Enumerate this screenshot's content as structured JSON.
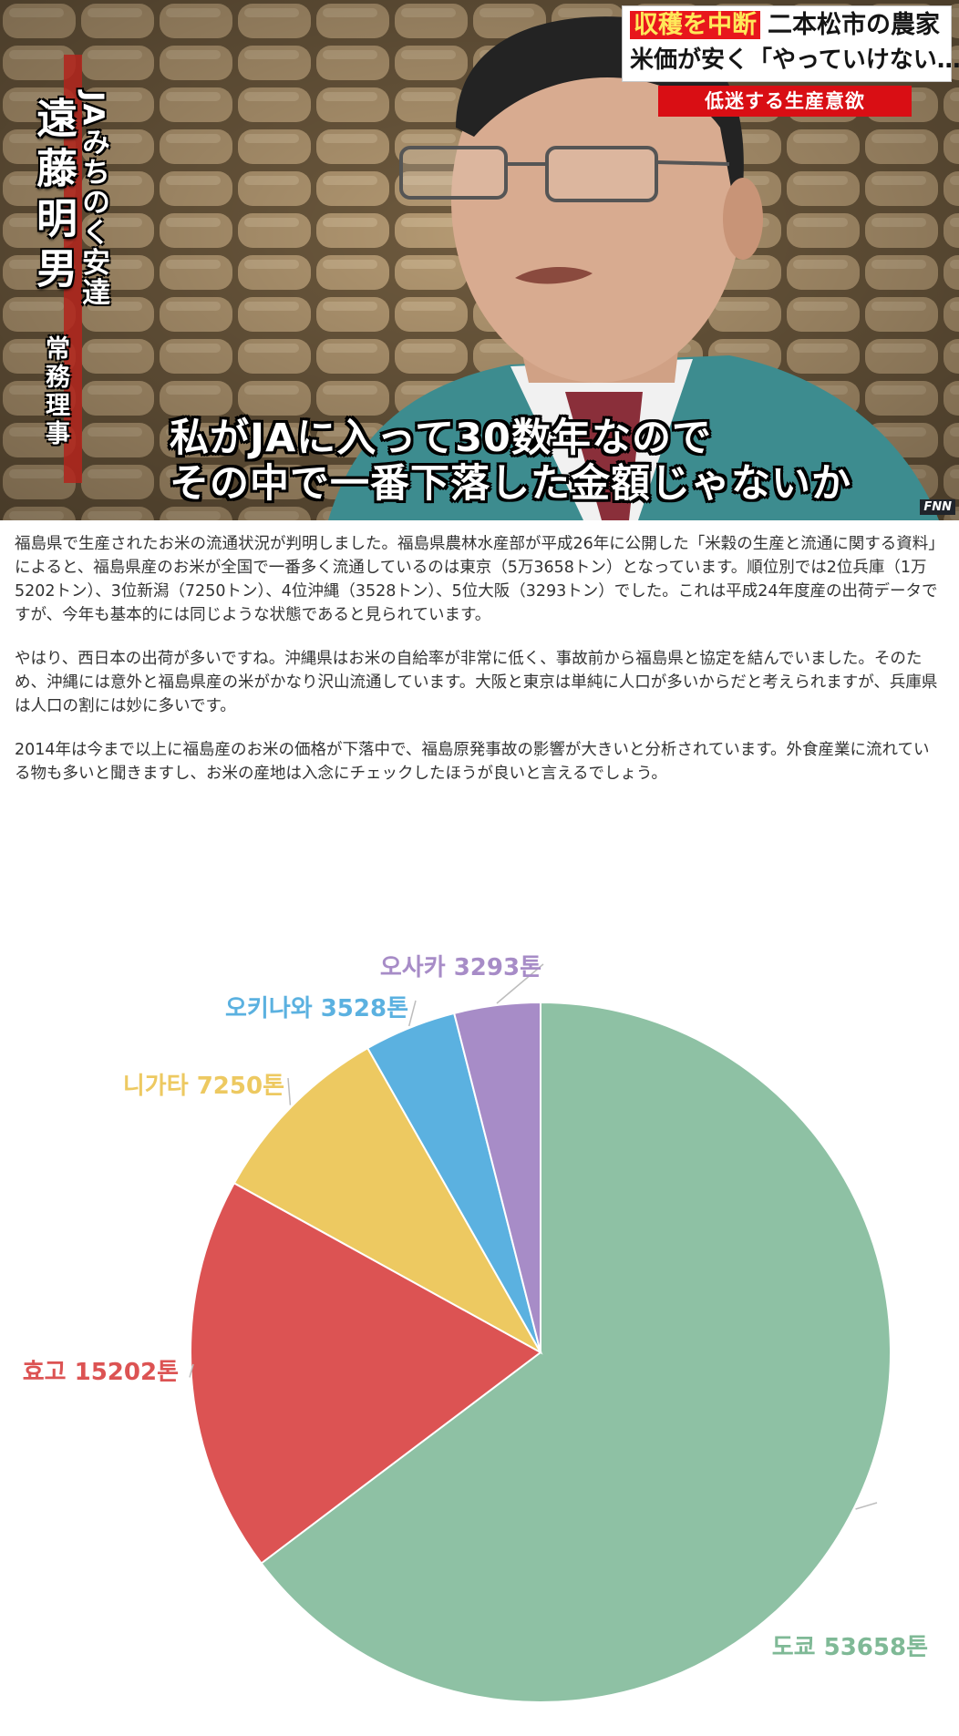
{
  "news": {
    "headline_tag": "収穫を中断",
    "headline_rest": "二本松市の農家",
    "headline_line2": "米価が安く「やっていけない…」",
    "red_caption": "低迷する生産意欲",
    "person_name": "遠藤明男",
    "person_org": "JAみちのく安達",
    "person_title": "常務理事",
    "subtitle_line1": "私がJAに入って30数年なので",
    "subtitle_line2": "その中で一番下落した金額じゃないか",
    "network_logo": "FNN"
  },
  "article": {
    "p1": "福島県で生産されたお米の流通状況が判明しました。福島県農林水産部が平成26年に公開した「米穀の生産と流通に関する資料」によると、福島県産のお米が全国で一番多く流通しているのは東京（5万3658トン）となっています。順位別では2位兵庫（1万5202トン）、3位新潟（7250トン）、4位沖縄（3528トン）、5位大阪（3293トン）でした。これは平成24年度産の出荷データですが、今年も基本的には同じような状態であると見られています。",
    "p2": "やはり、西日本の出荷が多いですね。沖縄県はお米の自給率が非常に低く、事故前から福島県と協定を結んでいました。そのため、沖縄には意外と福島県産の米がかなり沢山流通しています。大阪と東京は単純に人口が多いからだと考えられますが、兵庫県は人口の割には妙に多いです。",
    "p3": "2014年は今まで以上に福島産のお米の価格が下落中で、福島原発事故の影響が大きいと分析されています。外食産業に流れている物も多いと聞きますし、お米の産地は入念にチェックしたほうが良いと言えるでしょう。"
  },
  "chart_data": {
    "type": "pie",
    "title": "",
    "unit": "톤",
    "start": "top, clockwise",
    "slices": [
      {
        "label": "도쿄 53658톤",
        "value": 53658,
        "color": "#8ec1a4"
      },
      {
        "label": "효고 15202톤",
        "value": 15202,
        "color": "#dc5353"
      },
      {
        "label": "니가타 7250톤",
        "value": 7250,
        "color": "#edc961"
      },
      {
        "label": "오키나와 3528톤",
        "value": 3528,
        "color": "#5bb1e0"
      },
      {
        "label": "오사카 3293톤",
        "value": 3293,
        "color": "#a78cc7"
      }
    ]
  }
}
